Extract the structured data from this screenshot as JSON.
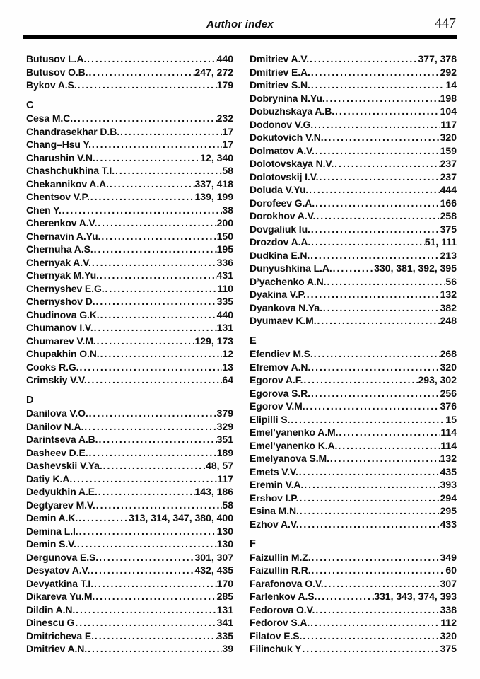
{
  "header": {
    "title": "Author index",
    "page_number": "447"
  },
  "columns": [
    {
      "items": [
        {
          "type": "entry",
          "name": "Butusov L.A.",
          "pages": "440"
        },
        {
          "type": "entry",
          "name": "Butusov O.B.",
          "pages": "247, 272"
        },
        {
          "type": "entry",
          "name": "Bykov A.S.",
          "pages": "179"
        },
        {
          "type": "section",
          "letter": "C"
        },
        {
          "type": "entry",
          "name": "Cesa M.C.",
          "pages": "232"
        },
        {
          "type": "entry",
          "name": "Chandrasekhar D.B.",
          "pages": "17"
        },
        {
          "type": "entry",
          "name": "Chang–Hsu Y.",
          "pages": "17"
        },
        {
          "type": "entry",
          "name": "Charushin V.N.",
          "pages": "12, 340"
        },
        {
          "type": "entry",
          "name": "Chashchukhina T.I.",
          "pages": "58"
        },
        {
          "type": "entry",
          "name": "Chekannikov A.A.",
          "pages": "337, 418"
        },
        {
          "type": "entry",
          "name": "Chentsov V.P.",
          "pages": "139, 199"
        },
        {
          "type": "entry",
          "name": "Chen Y.",
          "pages": "38"
        },
        {
          "type": "entry",
          "name": "Cherenkov A.V.",
          "pages": "200"
        },
        {
          "type": "entry",
          "name": "Chernavin A.Yu.",
          "pages": "150"
        },
        {
          "type": "entry",
          "name": "Chernuha A.S.",
          "pages": "195"
        },
        {
          "type": "entry",
          "name": "Chernyak A.V.",
          "pages": "336"
        },
        {
          "type": "entry",
          "name": "Chernyak M.Yu.",
          "pages": "431"
        },
        {
          "type": "entry",
          "name": "Chernyshev E.G.",
          "pages": "110"
        },
        {
          "type": "entry",
          "name": "Chernyshov D.",
          "pages": "335"
        },
        {
          "type": "entry",
          "name": "Chudinova G.K.",
          "pages": "440"
        },
        {
          "type": "entry",
          "name": "Chumanov I.V.",
          "pages": "131"
        },
        {
          "type": "entry",
          "name": "Chumarev V.M.",
          "pages": "129, 173"
        },
        {
          "type": "entry",
          "name": "Chupakhin O.N.",
          "pages": "12"
        },
        {
          "type": "entry",
          "name": "Cooks R.G.",
          "pages": "13"
        },
        {
          "type": "entry",
          "name": "Crimskiy V.V.",
          "pages": "64"
        },
        {
          "type": "section",
          "letter": "D"
        },
        {
          "type": "entry",
          "name": "Danilova V.O.",
          "pages": "379"
        },
        {
          "type": "entry",
          "name": "Danilov N.A.",
          "pages": "329"
        },
        {
          "type": "entry",
          "name": "Darintseva A.B.",
          "pages": "351"
        },
        {
          "type": "entry",
          "name": "Dasheev D.E.",
          "pages": "189"
        },
        {
          "type": "entry",
          "name": "Dashevskii V.Ya.",
          "pages": "48, 57"
        },
        {
          "type": "entry",
          "name": "Datiy K.A.",
          "pages": "117"
        },
        {
          "type": "entry",
          "name": "Dedyukhin A.E.",
          "pages": "143, 186"
        },
        {
          "type": "entry",
          "name": "Degtyarev M.V.",
          "pages": "58"
        },
        {
          "type": "entry",
          "name": "Demin A.K.",
          "pages": "313, 314, 347, 380, 400"
        },
        {
          "type": "entry",
          "name": "Demina L.I.",
          "pages": "130"
        },
        {
          "type": "entry",
          "name": "Demin S.V.",
          "pages": "130"
        },
        {
          "type": "entry",
          "name": "Dergunova E.S.",
          "pages": "301, 307"
        },
        {
          "type": "entry",
          "name": "Desyatov A.V.",
          "pages": "432, 435"
        },
        {
          "type": "entry",
          "name": "Devyatkina T.I.",
          "pages": "170"
        },
        {
          "type": "entry",
          "name": "Dikareva Yu.M.",
          "pages": "285"
        },
        {
          "type": "entry",
          "name": "Dildin A.N.",
          "pages": "131"
        },
        {
          "type": "entry",
          "name": "Dinescu G",
          "pages": "341"
        },
        {
          "type": "entry",
          "name": "Dmitricheva E.",
          "pages": "335"
        },
        {
          "type": "entry",
          "name": "Dmitriev A.N.",
          "pages": "39"
        }
      ]
    },
    {
      "items": [
        {
          "type": "entry",
          "name": "Dmitriev A.V.",
          "pages": "377, 378"
        },
        {
          "type": "entry",
          "name": "Dmitriev E.A.",
          "pages": "292"
        },
        {
          "type": "entry",
          "name": "Dmitriev S.N.",
          "pages": "14"
        },
        {
          "type": "entry",
          "name": "Dobrynina N.Yu.",
          "pages": "198"
        },
        {
          "type": "entry",
          "name": "Dobuzhskaya A.B.",
          "pages": "104"
        },
        {
          "type": "entry",
          "name": "Dodonov V.G.",
          "pages": "117"
        },
        {
          "type": "entry",
          "name": "Dokutovich V.N.",
          "pages": "320"
        },
        {
          "type": "entry",
          "name": "Dolmatov A.V.",
          "pages": "159"
        },
        {
          "type": "entry",
          "name": "Dolotovskaya N.V.",
          "pages": "237"
        },
        {
          "type": "entry",
          "name": "Dolotovskij I.V.",
          "pages": "237"
        },
        {
          "type": "entry",
          "name": "Doluda V.Yu.",
          "pages": "444"
        },
        {
          "type": "entry",
          "name": "Dorofeev G.A.",
          "pages": "166"
        },
        {
          "type": "entry",
          "name": "Dorokhov A.V.",
          "pages": "258"
        },
        {
          "type": "entry",
          "name": "Dovgaliuk Iu.",
          "pages": "375"
        },
        {
          "type": "entry",
          "name": "Drozdov A.A.",
          "pages": "51, 111"
        },
        {
          "type": "entry",
          "name": "Dudkina E.N.",
          "pages": "213"
        },
        {
          "type": "entry",
          "name": "Dunyushkina L.A.",
          "pages": "330, 381, 392, 395"
        },
        {
          "type": "entry",
          "name": "D’yachenko A.N.",
          "pages": "56"
        },
        {
          "type": "entry",
          "name": "Dyakina V.P.",
          "pages": "132"
        },
        {
          "type": "entry",
          "name": "Dyankova N.Ya.",
          "pages": "382"
        },
        {
          "type": "entry",
          "name": "Dyumaev K.M.",
          "pages": "248"
        },
        {
          "type": "section",
          "letter": "E"
        },
        {
          "type": "entry",
          "name": "Efendiev M.S.",
          "pages": "268"
        },
        {
          "type": "entry",
          "name": "Efremov A.N.",
          "pages": "320"
        },
        {
          "type": "entry",
          "name": "Egorov A.F.",
          "pages": "293, 302"
        },
        {
          "type": "entry",
          "name": "Egorova S.R.",
          "pages": "256"
        },
        {
          "type": "entry",
          "name": "Egorov V.M.",
          "pages": "376"
        },
        {
          "type": "entry",
          "name": "Elipilli S.",
          "pages": "15"
        },
        {
          "type": "entry",
          "name": "Emel’yanenko A.M.",
          "pages": "114"
        },
        {
          "type": "entry",
          "name": "Emel’yanenko K.A.",
          "pages": "114"
        },
        {
          "type": "entry",
          "name": "Emelyanova S.M.",
          "pages": "132"
        },
        {
          "type": "entry",
          "name": "Emets V.V.",
          "pages": "435"
        },
        {
          "type": "entry",
          "name": "Eremin V.A.",
          "pages": "393"
        },
        {
          "type": "entry",
          "name": "Ershov I.P.",
          "pages": "294"
        },
        {
          "type": "entry",
          "name": "Esina M.N.",
          "pages": "295"
        },
        {
          "type": "entry",
          "name": "Ezhov A.V.",
          "pages": "433"
        },
        {
          "type": "section",
          "letter": "F"
        },
        {
          "type": "entry",
          "name": "Faizullin M.Z.",
          "pages": "349"
        },
        {
          "type": "entry",
          "name": "Faizullin R.R.",
          "pages": "60"
        },
        {
          "type": "entry",
          "name": "Farafonova O.V.",
          "pages": "307"
        },
        {
          "type": "entry",
          "name": "Farlenkov A.S.",
          "pages": "331, 343, 374, 393"
        },
        {
          "type": "entry",
          "name": "Fedorova O.V.",
          "pages": "338"
        },
        {
          "type": "entry",
          "name": "Fedorov S.A.",
          "pages": "112"
        },
        {
          "type": "entry",
          "name": "Filatov E.S.",
          "pages": "320"
        },
        {
          "type": "entry",
          "name": "Filinchuk Y",
          "pages": "375"
        }
      ]
    }
  ]
}
